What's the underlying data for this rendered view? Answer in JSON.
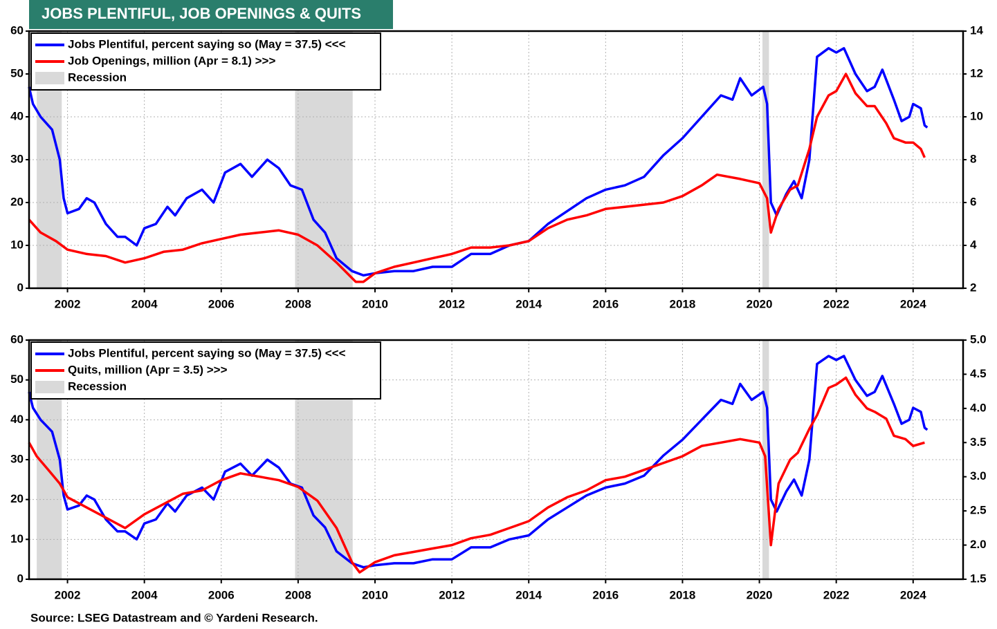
{
  "title": "JOBS PLENTIFUL, JOB OPENINGS & QUITS",
  "source": "Source: LSEG Datastream and © Yardeni Research.",
  "chart_data": [
    {
      "type": "line",
      "xlim": [
        2001,
        2025.3
      ],
      "xticks": [
        2002,
        2004,
        2006,
        2008,
        2010,
        2012,
        2014,
        2016,
        2018,
        2020,
        2022,
        2024
      ],
      "ylim": [
        0,
        60
      ],
      "yticks": [
        0,
        10,
        20,
        30,
        40,
        50,
        60
      ],
      "y2lim": [
        2,
        14
      ],
      "y2ticks": [
        2,
        4,
        6,
        8,
        10,
        12,
        14
      ],
      "grid": true,
      "legend": "upper left",
      "recession": {
        "name": "Recession",
        "color": "#d9d9d9",
        "periods": [
          [
            2001.2,
            2001.85
          ],
          [
            2007.92,
            2009.42
          ],
          [
            2020.08,
            2020.25
          ]
        ]
      },
      "series": [
        {
          "name": "Jobs Plentiful, percent saying so (May = 37.5) <<<",
          "color": "#0000ff",
          "axis": "y",
          "x": [
            2001.0,
            2001.1,
            2001.3,
            2001.6,
            2001.8,
            2001.9,
            2002.0,
            2002.3,
            2002.5,
            2002.7,
            2003.0,
            2003.3,
            2003.5,
            2003.8,
            2004.0,
            2004.3,
            2004.6,
            2004.8,
            2005.1,
            2005.5,
            2005.8,
            2006.1,
            2006.5,
            2006.8,
            2007.2,
            2007.5,
            2007.8,
            2008.1,
            2008.4,
            2008.7,
            2009.0,
            2009.4,
            2009.7,
            2010.0,
            2010.5,
            2011.0,
            2011.5,
            2012.0,
            2012.5,
            2013.0,
            2013.5,
            2014.0,
            2014.5,
            2015.0,
            2015.5,
            2016.0,
            2016.5,
            2017.0,
            2017.5,
            2018.0,
            2018.5,
            2019.0,
            2019.3,
            2019.5,
            2019.8,
            2020.1,
            2020.2,
            2020.3,
            2020.45,
            2020.7,
            2020.9,
            2021.1,
            2021.3,
            2021.5,
            2021.8,
            2022.0,
            2022.2,
            2022.5,
            2022.8,
            2023.0,
            2023.2,
            2023.5,
            2023.7,
            2023.9,
            2024.0,
            2024.2,
            2024.3,
            2024.37
          ],
          "values": [
            47,
            43,
            40,
            37,
            30,
            21,
            17.5,
            18.5,
            21,
            20,
            15,
            12,
            12,
            10,
            14,
            15,
            19,
            17,
            21,
            23,
            20,
            27,
            29,
            26,
            30,
            28,
            24,
            23,
            16,
            13,
            7,
            4,
            3,
            3.5,
            4,
            4,
            5,
            5,
            8,
            8,
            10,
            11,
            15,
            18,
            21,
            23,
            24,
            26,
            31,
            35,
            40,
            45,
            44,
            49,
            45,
            47,
            43,
            20,
            17,
            22,
            25,
            21,
            30,
            54,
            56,
            55,
            56,
            50,
            46,
            47,
            51,
            44,
            39,
            40,
            43,
            42,
            38,
            37.5
          ]
        },
        {
          "name": "Job Openings, million (Apr = 8.1) >>>",
          "color": "#ff0000",
          "axis": "y2",
          "x": [
            2001.0,
            2001.3,
            2001.7,
            2002.0,
            2002.5,
            2003.0,
            2003.5,
            2004.0,
            2004.5,
            2005.0,
            2005.5,
            2006.0,
            2006.5,
            2007.0,
            2007.5,
            2008.0,
            2008.5,
            2009.0,
            2009.5,
            2009.7,
            2010.0,
            2010.5,
            2011.0,
            2011.5,
            2012.0,
            2012.5,
            2013.0,
            2013.5,
            2014.0,
            2014.5,
            2015.0,
            2015.5,
            2016.0,
            2016.5,
            2017.0,
            2017.5,
            2018.0,
            2018.5,
            2018.9,
            2019.5,
            2020.0,
            2020.2,
            2020.3,
            2020.5,
            2020.8,
            2021.0,
            2021.3,
            2021.5,
            2021.8,
            2022.0,
            2022.25,
            2022.5,
            2022.8,
            2023.0,
            2023.3,
            2023.5,
            2023.8,
            2024.0,
            2024.2,
            2024.3
          ],
          "values": [
            5.2,
            4.6,
            4.2,
            3.8,
            3.6,
            3.5,
            3.2,
            3.4,
            3.7,
            3.8,
            4.1,
            4.3,
            4.5,
            4.6,
            4.7,
            4.5,
            4.0,
            3.2,
            2.3,
            2.3,
            2.7,
            3.0,
            3.2,
            3.4,
            3.6,
            3.9,
            3.9,
            4.0,
            4.2,
            4.8,
            5.2,
            5.4,
            5.7,
            5.8,
            5.9,
            6.0,
            6.3,
            6.8,
            7.3,
            7.1,
            6.9,
            6.2,
            4.6,
            5.7,
            6.6,
            6.8,
            8.5,
            10.0,
            11.0,
            11.2,
            12.0,
            11.1,
            10.5,
            10.5,
            9.7,
            9.0,
            8.8,
            8.8,
            8.5,
            8.1
          ]
        }
      ]
    },
    {
      "type": "line",
      "xlim": [
        2001,
        2025.3
      ],
      "xticks": [
        2002,
        2004,
        2006,
        2008,
        2010,
        2012,
        2014,
        2016,
        2018,
        2020,
        2022,
        2024
      ],
      "ylim": [
        0,
        60
      ],
      "yticks": [
        0,
        10,
        20,
        30,
        40,
        50,
        60
      ],
      "y2lim": [
        1.5,
        5.0
      ],
      "y2ticks": [
        1.5,
        {
          "value": 2,
          "label": "2.0"
        },
        2.5,
        {
          "value": 3,
          "label": "3.0"
        },
        3.5,
        {
          "value": 4,
          "label": "4.0"
        },
        4.5,
        {
          "value": 5,
          "label": "5.0"
        }
      ],
      "grid": true,
      "legend": "upper left",
      "recession": {
        "name": "Recession",
        "color": "#d9d9d9",
        "periods": [
          [
            2001.2,
            2001.85
          ],
          [
            2007.92,
            2009.42
          ],
          [
            2020.08,
            2020.25
          ]
        ]
      },
      "series": [
        {
          "name": "Jobs Plentiful, percent saying so (May = 37.5) <<<",
          "color": "#0000ff",
          "axis": "y",
          "x": [
            2001.0,
            2001.1,
            2001.3,
            2001.6,
            2001.8,
            2001.9,
            2002.0,
            2002.3,
            2002.5,
            2002.7,
            2003.0,
            2003.3,
            2003.5,
            2003.8,
            2004.0,
            2004.3,
            2004.6,
            2004.8,
            2005.1,
            2005.5,
            2005.8,
            2006.1,
            2006.5,
            2006.8,
            2007.2,
            2007.5,
            2007.8,
            2008.1,
            2008.4,
            2008.7,
            2009.0,
            2009.4,
            2009.7,
            2010.0,
            2010.5,
            2011.0,
            2011.5,
            2012.0,
            2012.5,
            2013.0,
            2013.5,
            2014.0,
            2014.5,
            2015.0,
            2015.5,
            2016.0,
            2016.5,
            2017.0,
            2017.5,
            2018.0,
            2018.5,
            2019.0,
            2019.3,
            2019.5,
            2019.8,
            2020.1,
            2020.2,
            2020.3,
            2020.45,
            2020.7,
            2020.9,
            2021.1,
            2021.3,
            2021.5,
            2021.8,
            2022.0,
            2022.2,
            2022.5,
            2022.8,
            2023.0,
            2023.2,
            2023.5,
            2023.7,
            2023.9,
            2024.0,
            2024.2,
            2024.3,
            2024.37
          ],
          "values": [
            47,
            43,
            40,
            37,
            30,
            21,
            17.5,
            18.5,
            21,
            20,
            15,
            12,
            12,
            10,
            14,
            15,
            19,
            17,
            21,
            23,
            20,
            27,
            29,
            26,
            30,
            28,
            24,
            23,
            16,
            13,
            7,
            4,
            3,
            3.5,
            4,
            4,
            5,
            5,
            8,
            8,
            10,
            11,
            15,
            18,
            21,
            23,
            24,
            26,
            31,
            35,
            40,
            45,
            44,
            49,
            45,
            47,
            43,
            20,
            17,
            22,
            25,
            21,
            30,
            54,
            56,
            55,
            56,
            50,
            46,
            47,
            51,
            44,
            39,
            40,
            43,
            42,
            38,
            37.5
          ]
        },
        {
          "name": "Quits, million (Apr = 3.5) >>>",
          "color": "#ff0000",
          "axis": "y2",
          "x": [
            2001.0,
            2001.2,
            2001.5,
            2001.8,
            2002.0,
            2002.5,
            2003.0,
            2003.5,
            2004.0,
            2004.5,
            2005.0,
            2005.5,
            2006.0,
            2006.5,
            2007.0,
            2007.5,
            2008.0,
            2008.5,
            2009.0,
            2009.4,
            2009.6,
            2010.0,
            2010.5,
            2011.0,
            2011.5,
            2012.0,
            2012.5,
            2013.0,
            2013.5,
            2014.0,
            2014.5,
            2015.0,
            2015.5,
            2016.0,
            2016.5,
            2017.0,
            2017.5,
            2018.0,
            2018.5,
            2019.0,
            2019.5,
            2020.0,
            2020.15,
            2020.3,
            2020.5,
            2020.8,
            2021.0,
            2021.3,
            2021.5,
            2021.8,
            2022.0,
            2022.25,
            2022.5,
            2022.8,
            2023.0,
            2023.3,
            2023.5,
            2023.8,
            2024.0,
            2024.3
          ],
          "values": [
            3.5,
            3.3,
            3.1,
            2.9,
            2.7,
            2.55,
            2.4,
            2.25,
            2.45,
            2.6,
            2.75,
            2.8,
            2.95,
            3.05,
            3.0,
            2.95,
            2.85,
            2.65,
            2.25,
            1.75,
            1.6,
            1.75,
            1.85,
            1.9,
            1.95,
            2.0,
            2.1,
            2.15,
            2.25,
            2.35,
            2.55,
            2.7,
            2.8,
            2.95,
            3.0,
            3.1,
            3.2,
            3.3,
            3.45,
            3.5,
            3.55,
            3.5,
            3.3,
            2.0,
            2.9,
            3.25,
            3.35,
            3.7,
            3.9,
            4.3,
            4.35,
            4.45,
            4.2,
            4.0,
            3.95,
            3.85,
            3.6,
            3.55,
            3.45,
            3.5
          ]
        }
      ]
    }
  ]
}
